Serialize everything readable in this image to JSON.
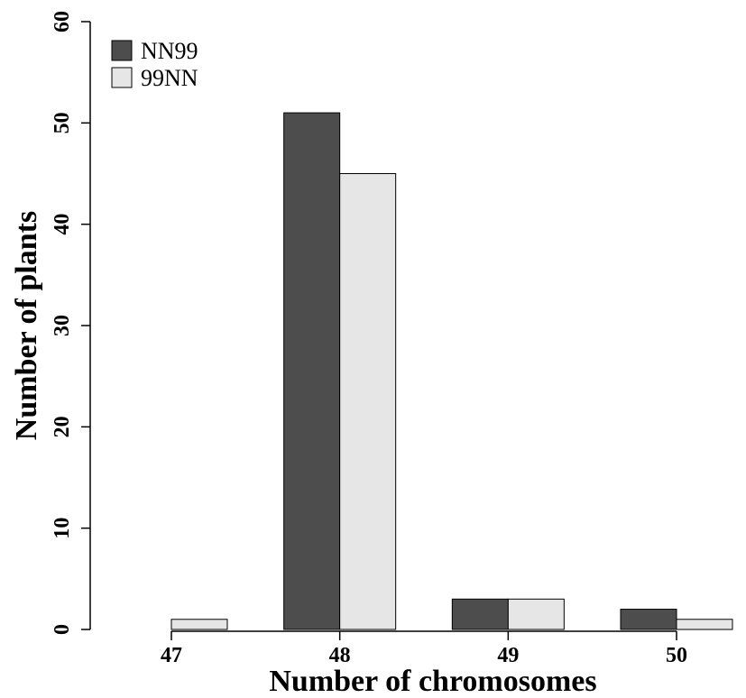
{
  "chart_data": {
    "type": "bar",
    "title": "",
    "xlabel": "Number of chromosomes",
    "ylabel": "Number of plants",
    "categories": [
      "47",
      "48",
      "49",
      "50"
    ],
    "series": [
      {
        "name": "NN99",
        "values": [
          0,
          51,
          3,
          2
        ],
        "color": "#4d4d4d"
      },
      {
        "name": "99NN",
        "values": [
          1,
          45,
          3,
          1
        ],
        "color": "#e6e6e6"
      }
    ],
    "ylim": [
      0,
      60
    ],
    "yticks": [
      0,
      10,
      20,
      30,
      40,
      50,
      60
    ],
    "grid": false,
    "legend_position": "top-left"
  }
}
